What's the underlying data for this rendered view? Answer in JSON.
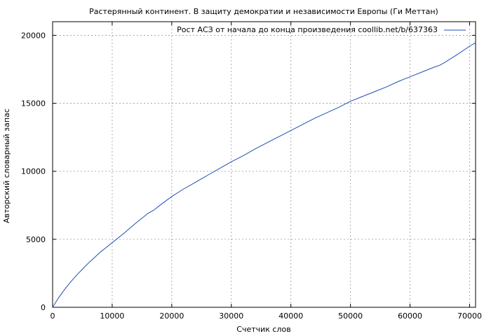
{
  "chart_data": {
    "type": "line",
    "title": "Растерянный континент. В защиту демократии и независимости Европы (Ги Меттан)",
    "xlabel": "Счетчик слов",
    "ylabel": "Авторский словарный запас",
    "xlim": [
      0,
      71000
    ],
    "ylim": [
      0,
      21000
    ],
    "x_ticks": [
      0,
      10000,
      20000,
      30000,
      40000,
      50000,
      60000,
      70000
    ],
    "y_ticks": [
      0,
      5000,
      10000,
      15000,
      20000
    ],
    "x_tick_labels": [
      "0",
      "10000",
      "20000",
      "30000",
      "40000",
      "50000",
      "60000",
      "70000"
    ],
    "y_tick_labels": [
      "0",
      "5000",
      "10000",
      "15000",
      "20000"
    ],
    "grid": true,
    "legend_position": "top-right",
    "series": [
      {
        "name": "Рост АСЗ от начала до конца произведения coollib.net/b/637363",
        "color": "#1f4fb4",
        "x": [
          0,
          1000,
          2000,
          3000,
          4000,
          5000,
          6000,
          7000,
          8000,
          9000,
          10000,
          12000,
          14000,
          16000,
          17000,
          18000,
          20000,
          22000,
          24000,
          26000,
          28000,
          30000,
          32000,
          34000,
          36000,
          38000,
          40000,
          42000,
          44000,
          46000,
          48000,
          50000,
          52000,
          54000,
          56000,
          58000,
          60000,
          62000,
          64000,
          65000,
          66000,
          68000,
          70000,
          71000
        ],
        "y": [
          0,
          700,
          1300,
          1850,
          2350,
          2800,
          3250,
          3650,
          4050,
          4400,
          4750,
          5450,
          6200,
          6900,
          7150,
          7500,
          8150,
          8700,
          9200,
          9700,
          10200,
          10700,
          11150,
          11650,
          12100,
          12550,
          13000,
          13450,
          13900,
          14300,
          14700,
          15150,
          15500,
          15850,
          16200,
          16600,
          16950,
          17300,
          17650,
          17800,
          18050,
          18600,
          19200,
          19450
        ]
      }
    ]
  }
}
